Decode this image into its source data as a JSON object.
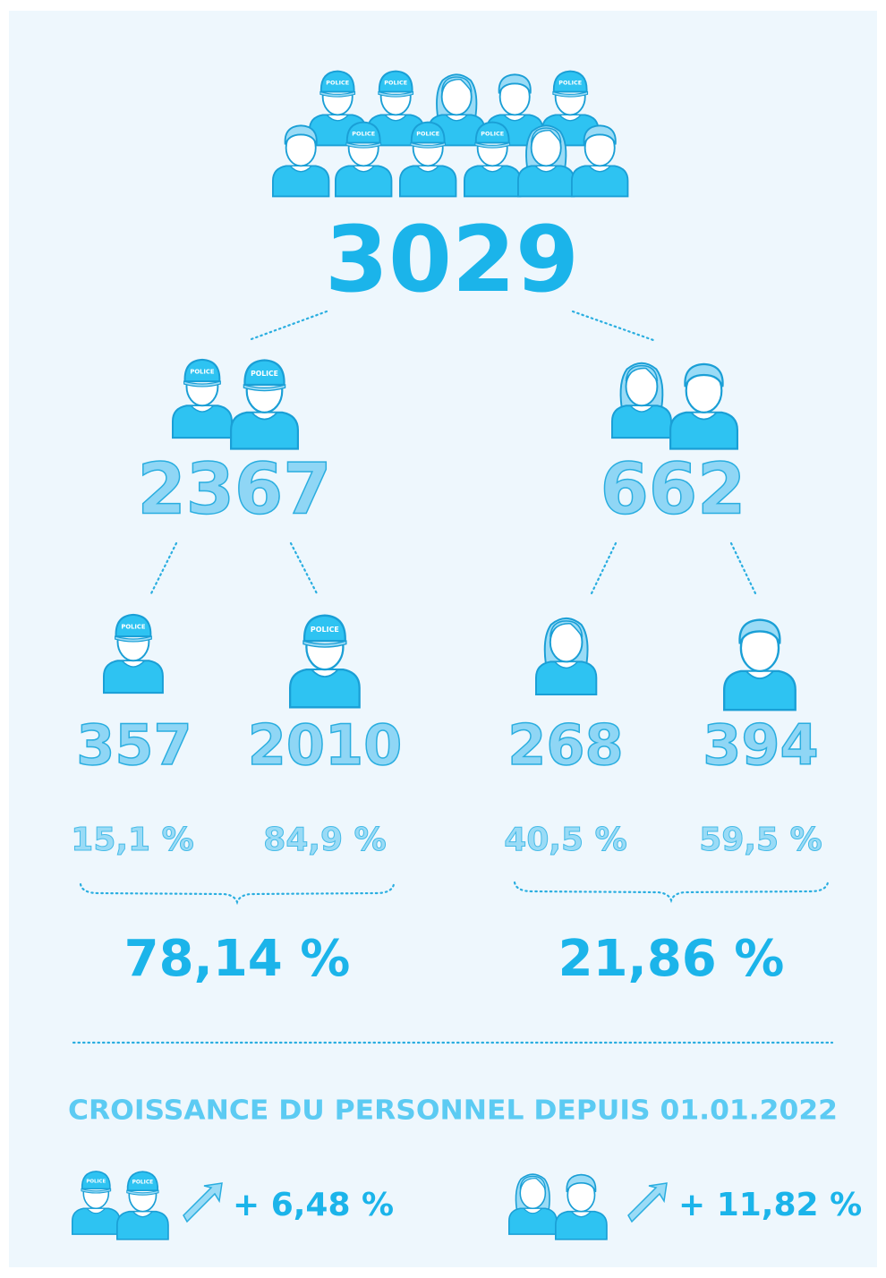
{
  "icon_label": "POLICE",
  "total": "3029",
  "groups": [
    {
      "value": "2367",
      "share": "78,14 %",
      "children": [
        {
          "value": "357",
          "share": "15,1 %"
        },
        {
          "value": "2010",
          "share": "84,9 %"
        }
      ]
    },
    {
      "value": "662",
      "share": "21,86 %",
      "children": [
        {
          "value": "268",
          "share": "40,5 %"
        },
        {
          "value": "394",
          "share": "59,5 %"
        }
      ]
    }
  ],
  "growth": {
    "title": "CROISSANCE DU PERSONNEL DEPUIS 01.01.2022",
    "items": [
      {
        "value": "+ 6,48 %"
      },
      {
        "value": "+ 11,82 %"
      }
    ]
  }
}
